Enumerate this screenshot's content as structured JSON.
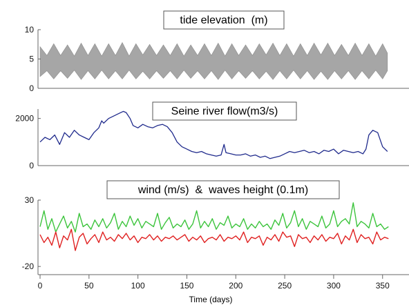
{
  "chart_data": [
    {
      "type": "area",
      "title": "tide elevation  (m)",
      "xlabel": "",
      "ylabel": "",
      "xlim": [
        0,
        365
      ],
      "ylim": [
        0,
        10
      ],
      "yticks": [
        0,
        5,
        10
      ],
      "color": "#a6a6a6",
      "grid": false,
      "series": [
        {
          "x": [
            0,
            7,
            14,
            21,
            28,
            35,
            42,
            49,
            56,
            63,
            70,
            77,
            84,
            91,
            98,
            105,
            112,
            119,
            126,
            133,
            140,
            147,
            154,
            161,
            168,
            175,
            182,
            189,
            196,
            203,
            210,
            217,
            224,
            231,
            238,
            245,
            252,
            259,
            266,
            273,
            280,
            287,
            294,
            301,
            308,
            315,
            322,
            329,
            336,
            343,
            350,
            355
          ],
          "low": [
            2.0,
            3.0,
            1.6,
            3.0,
            1.7,
            3.1,
            1.5,
            3.0,
            1.6,
            3.1,
            1.6,
            3.0,
            1.6,
            3.1,
            1.6,
            2.9,
            1.6,
            3.0,
            1.7,
            3.0,
            1.6,
            3.1,
            1.7,
            3.0,
            1.6,
            3.0,
            1.5,
            3.1,
            1.6,
            3.0,
            1.7,
            3.0,
            1.6,
            2.9,
            1.5,
            3.0,
            1.6,
            3.1,
            1.6,
            3.0,
            1.5,
            2.9,
            1.5,
            3.0,
            1.6,
            3.0,
            1.5,
            3.0,
            1.6,
            3.1,
            1.6,
            3.0
          ],
          "high": [
            7.1,
            5.6,
            7.6,
            5.6,
            7.4,
            5.5,
            7.7,
            5.6,
            7.6,
            5.5,
            7.6,
            5.6,
            7.8,
            5.5,
            7.6,
            5.7,
            7.5,
            5.6,
            7.4,
            5.6,
            7.6,
            5.5,
            7.4,
            5.6,
            7.6,
            5.6,
            7.7,
            5.5,
            7.6,
            5.6,
            7.4,
            5.6,
            7.6,
            5.7,
            7.7,
            5.6,
            7.6,
            5.5,
            7.6,
            5.6,
            7.7,
            5.7,
            7.7,
            5.6,
            7.5,
            5.6,
            7.7,
            5.6,
            7.6,
            5.5,
            7.6,
            6.0
          ]
        }
      ]
    },
    {
      "type": "line",
      "title": "Seine river flow(m3/s)",
      "xlabel": "",
      "ylabel": "",
      "xlim": [
        0,
        365
      ],
      "ylim": [
        0,
        2400
      ],
      "yticks": [
        0,
        2000
      ],
      "grid": false,
      "series": [
        {
          "color": "#1f2a8c",
          "x": [
            0,
            5,
            10,
            15,
            20,
            25,
            30,
            35,
            40,
            45,
            50,
            55,
            60,
            63,
            65,
            70,
            75,
            80,
            85,
            88,
            92,
            95,
            100,
            105,
            110,
            115,
            120,
            125,
            130,
            135,
            140,
            145,
            150,
            155,
            160,
            165,
            170,
            175,
            180,
            185,
            188,
            190,
            195,
            200,
            205,
            210,
            215,
            220,
            225,
            230,
            235,
            240,
            245,
            250,
            255,
            260,
            265,
            270,
            275,
            280,
            285,
            290,
            295,
            300,
            305,
            310,
            315,
            320,
            325,
            330,
            333,
            336,
            340,
            345,
            350,
            355
          ],
          "y": [
            1000,
            1200,
            1100,
            1300,
            900,
            1400,
            1200,
            1500,
            1300,
            1200,
            1100,
            1400,
            1600,
            1900,
            1800,
            2000,
            2100,
            2200,
            2300,
            2250,
            2000,
            1700,
            1600,
            1750,
            1650,
            1600,
            1700,
            1750,
            1650,
            1400,
            1000,
            800,
            700,
            600,
            550,
            600,
            500,
            450,
            400,
            450,
            900,
            550,
            500,
            450,
            450,
            500,
            400,
            450,
            350,
            400,
            300,
            350,
            400,
            500,
            600,
            550,
            600,
            650,
            550,
            600,
            500,
            650,
            600,
            700,
            500,
            650,
            600,
            550,
            600,
            500,
            700,
            1300,
            1500,
            1400,
            800,
            600
          ]
        }
      ]
    },
    {
      "type": "line",
      "title": "wind (m/s)  &  waves height (0.1m)",
      "xlabel": "Time (days)",
      "ylabel": "",
      "xlim": [
        0,
        365
      ],
      "ylim": [
        -22,
        30
      ],
      "yticks": [
        -20,
        30
      ],
      "xticks": [
        0,
        50,
        100,
        150,
        200,
        250,
        300,
        350
      ],
      "grid": false,
      "series": [
        {
          "color": "#3cc43c",
          "x": [
            0,
            4,
            8,
            12,
            16,
            20,
            24,
            28,
            32,
            36,
            40,
            44,
            48,
            52,
            56,
            60,
            64,
            68,
            72,
            76,
            80,
            84,
            88,
            92,
            96,
            100,
            104,
            108,
            112,
            116,
            120,
            124,
            128,
            132,
            136,
            140,
            144,
            148,
            152,
            156,
            160,
            164,
            168,
            172,
            176,
            180,
            184,
            188,
            192,
            196,
            200,
            204,
            208,
            212,
            216,
            220,
            224,
            228,
            232,
            236,
            240,
            244,
            248,
            252,
            256,
            260,
            264,
            268,
            272,
            276,
            280,
            284,
            288,
            292,
            296,
            300,
            304,
            308,
            312,
            316,
            320,
            324,
            328,
            332,
            336,
            340,
            344,
            348,
            352,
            356
          ],
          "y": [
            10,
            22,
            8,
            16,
            6,
            12,
            18,
            9,
            14,
            6,
            20,
            10,
            12,
            8,
            15,
            10,
            16,
            9,
            13,
            20,
            8,
            14,
            10,
            18,
            11,
            16,
            9,
            14,
            12,
            10,
            20,
            8,
            13,
            17,
            9,
            12,
            10,
            15,
            8,
            12,
            22,
            9,
            14,
            10,
            16,
            8,
            13,
            11,
            18,
            9,
            12,
            10,
            16,
            8,
            12,
            9,
            14,
            10,
            12,
            8,
            15,
            11,
            20,
            9,
            13,
            22,
            10,
            16,
            8,
            14,
            12,
            10,
            18,
            9,
            12,
            22,
            10,
            14,
            16,
            12,
            28,
            10,
            14,
            12,
            9,
            20,
            10,
            12,
            8,
            10
          ]
        },
        {
          "color": "#e02020",
          "x": [
            0,
            4,
            8,
            12,
            16,
            20,
            24,
            28,
            32,
            36,
            40,
            44,
            48,
            52,
            56,
            60,
            64,
            68,
            72,
            76,
            80,
            84,
            88,
            92,
            96,
            100,
            104,
            108,
            112,
            116,
            120,
            124,
            128,
            132,
            136,
            140,
            144,
            148,
            152,
            156,
            160,
            164,
            168,
            172,
            176,
            180,
            184,
            188,
            192,
            196,
            200,
            204,
            208,
            212,
            216,
            220,
            224,
            228,
            232,
            236,
            240,
            244,
            248,
            252,
            256,
            260,
            264,
            268,
            272,
            276,
            280,
            284,
            288,
            292,
            296,
            300,
            304,
            308,
            312,
            316,
            320,
            324,
            328,
            332,
            336,
            340,
            344,
            348,
            352,
            356
          ],
          "y": [
            4,
            -2,
            2,
            -4,
            6,
            -6,
            3,
            0,
            8,
            -8,
            2,
            5,
            -3,
            1,
            4,
            -2,
            6,
            0,
            2,
            -1,
            4,
            1,
            5,
            0,
            3,
            -2,
            2,
            1,
            4,
            0,
            3,
            -1,
            2,
            1,
            3,
            0,
            2,
            4,
            -1,
            2,
            0,
            3,
            -2,
            1,
            2,
            0,
            4,
            -1,
            2,
            1,
            3,
            0,
            6,
            -2,
            2,
            1,
            3,
            -4,
            2,
            0,
            4,
            -1,
            6,
            2,
            3,
            -5,
            4,
            1,
            2,
            -2,
            3,
            0,
            4,
            -1,
            2,
            1,
            5,
            -3,
            3,
            0,
            8,
            -2,
            4,
            1,
            2,
            -3,
            6,
            0,
            2,
            1
          ]
        }
      ]
    }
  ]
}
